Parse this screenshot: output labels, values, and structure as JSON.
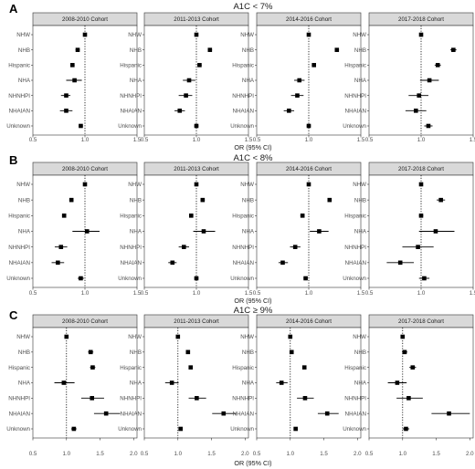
{
  "chart_data": [
    {
      "type": "forest",
      "panel_letter": "A",
      "title": "A1C < 7%",
      "xlabel": "OR (95% CI)",
      "xlim": [
        0.5,
        1.5
      ],
      "xticks": [
        "0.5",
        "1.0",
        "1.5"
      ],
      "reference_line": 1.0,
      "categories": [
        "NHW",
        "NHB",
        "Hispanic",
        "NHA",
        "NHNHPI",
        "NHAIAN",
        "Unknown"
      ],
      "facets": [
        {
          "name": "2008-2010 Cohort",
          "or": [
            1.0,
            0.93,
            0.88,
            0.9,
            0.82,
            0.82,
            0.96
          ],
          "lower": [
            1.0,
            0.91,
            0.86,
            0.82,
            0.77,
            0.76,
            0.94
          ],
          "upper": [
            1.0,
            0.95,
            0.9,
            0.97,
            0.86,
            0.88,
            0.98
          ]
        },
        {
          "name": "2011-2013 Cohort",
          "or": [
            1.0,
            1.13,
            1.03,
            0.93,
            0.9,
            0.84,
            1.0
          ],
          "lower": [
            1.0,
            1.11,
            1.01,
            0.87,
            0.83,
            0.79,
            0.98
          ],
          "upper": [
            1.0,
            1.15,
            1.05,
            0.99,
            0.96,
            0.89,
            1.02
          ]
        },
        {
          "name": "2014-2016 Cohort",
          "or": [
            1.0,
            1.27,
            1.05,
            0.91,
            0.89,
            0.81,
            1.0
          ],
          "lower": [
            1.0,
            1.25,
            1.03,
            0.86,
            0.83,
            0.76,
            0.98
          ],
          "upper": [
            1.0,
            1.29,
            1.07,
            0.96,
            0.95,
            0.86,
            1.02
          ]
        },
        {
          "name": "2017-2018 Cohort",
          "or": [
            1.0,
            1.31,
            1.16,
            1.08,
            0.98,
            0.95,
            1.07
          ],
          "lower": [
            1.0,
            1.28,
            1.13,
            0.99,
            0.88,
            0.85,
            1.03
          ],
          "upper": [
            1.0,
            1.34,
            1.19,
            1.17,
            1.07,
            1.05,
            1.11
          ]
        }
      ]
    },
    {
      "type": "forest",
      "panel_letter": "B",
      "title": "A1C < 8%",
      "xlabel": "OR (95% CI)",
      "xlim": [
        0.5,
        1.5
      ],
      "xticks": [
        "0.5",
        "1.0",
        "1.5"
      ],
      "reference_line": 1.0,
      "categories": [
        "NHW",
        "NHB",
        "Hispanic",
        "NHA",
        "NHNHPI",
        "NHAIAN",
        "Unknown"
      ],
      "facets": [
        {
          "name": "2008-2010 Cohort",
          "or": [
            1.0,
            0.87,
            0.8,
            1.02,
            0.77,
            0.74,
            0.96
          ],
          "lower": [
            1.0,
            0.85,
            0.78,
            0.88,
            0.71,
            0.68,
            0.93
          ],
          "upper": [
            1.0,
            0.89,
            0.82,
            1.14,
            0.83,
            0.8,
            0.99
          ]
        },
        {
          "name": "2011-2013 Cohort",
          "or": [
            1.0,
            1.06,
            0.95,
            1.07,
            0.88,
            0.77,
            1.0
          ],
          "lower": [
            1.0,
            1.04,
            0.93,
            0.97,
            0.83,
            0.73,
            0.98
          ],
          "upper": [
            1.0,
            1.08,
            0.97,
            1.18,
            0.93,
            0.81,
            1.02
          ]
        },
        {
          "name": "2014-2016 Cohort",
          "or": [
            1.0,
            1.2,
            0.94,
            1.1,
            0.87,
            0.75,
            0.97
          ],
          "lower": [
            1.0,
            1.18,
            0.92,
            1.01,
            0.82,
            0.71,
            0.95
          ],
          "upper": [
            1.0,
            1.22,
            0.96,
            1.19,
            0.92,
            0.8,
            0.99
          ]
        },
        {
          "name": "2017-2018 Cohort",
          "or": [
            1.0,
            1.19,
            1.0,
            1.14,
            0.97,
            0.8,
            1.03
          ],
          "lower": [
            1.0,
            1.15,
            0.98,
            0.98,
            0.82,
            0.67,
            0.98
          ],
          "upper": [
            1.0,
            1.23,
            1.02,
            1.32,
            1.12,
            0.93,
            1.08
          ]
        }
      ]
    },
    {
      "type": "forest",
      "panel_letter": "C",
      "title": "A1C ≥ 9%",
      "xlabel": "OR (95% CI)",
      "xlim": [
        0.5,
        2.05
      ],
      "xticks": [
        "0.5",
        "1.0",
        "1.5",
        "2.0"
      ],
      "reference_line": 1.0,
      "categories": [
        "NHW",
        "NHB",
        "Hispanic",
        "NHA",
        "NHNHPI",
        "NHAIAN",
        "Unknown"
      ],
      "facets": [
        {
          "name": "2008-2010 Cohort",
          "or": [
            1.0,
            1.36,
            1.39,
            0.96,
            1.38,
            1.59,
            1.11
          ],
          "lower": [
            1.0,
            1.32,
            1.35,
            0.82,
            1.22,
            1.41,
            1.07
          ],
          "upper": [
            1.0,
            1.4,
            1.43,
            1.12,
            1.56,
            1.8,
            1.15
          ]
        },
        {
          "name": "2011-2013 Cohort",
          "or": [
            1.0,
            1.15,
            1.19,
            0.91,
            1.28,
            1.68,
            1.04
          ],
          "lower": [
            1.0,
            1.12,
            1.16,
            0.81,
            1.16,
            1.51,
            1.01
          ],
          "upper": [
            1.0,
            1.18,
            1.22,
            1.01,
            1.42,
            1.87,
            1.07
          ]
        },
        {
          "name": "2014-2016 Cohort",
          "or": [
            1.0,
            1.02,
            1.21,
            0.87,
            1.22,
            1.55,
            1.08
          ],
          "lower": [
            1.0,
            0.99,
            1.18,
            0.79,
            1.1,
            1.41,
            1.05
          ],
          "upper": [
            1.0,
            1.05,
            1.24,
            0.96,
            1.35,
            1.72,
            1.11
          ]
        },
        {
          "name": "2017-2018 Cohort",
          "or": [
            1.0,
            1.03,
            1.15,
            0.92,
            1.09,
            1.69,
            1.05
          ],
          "lower": [
            1.0,
            0.99,
            1.1,
            0.78,
            0.91,
            1.43,
            1.0
          ],
          "upper": [
            1.0,
            1.07,
            1.2,
            1.06,
            1.3,
            2.0,
            1.1
          ]
        }
      ]
    }
  ]
}
